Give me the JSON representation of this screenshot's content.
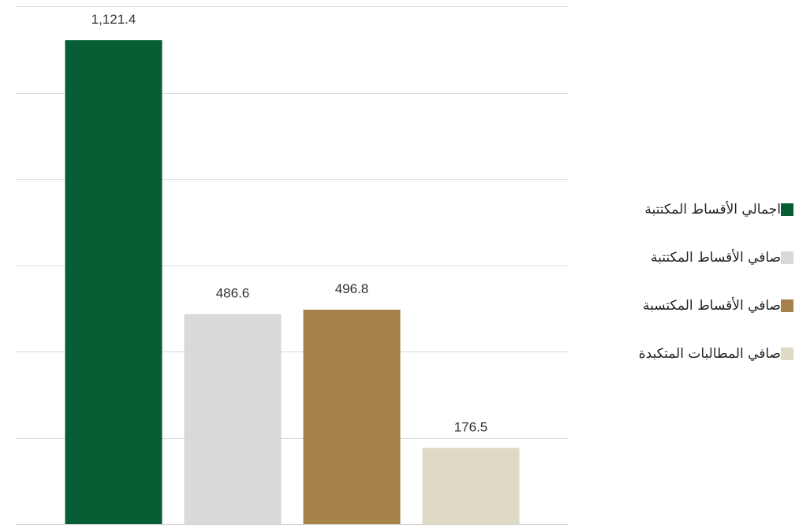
{
  "chart_data": {
    "type": "bar",
    "categories": [
      "اجمالي الأقساط المكتتبة",
      "صافي الأقساط المكتتبة",
      "صافي الأقساط المكتسبة",
      "صافي المطالبات المتكبدة"
    ],
    "values": [
      1121.4,
      486.6,
      496.8,
      176.5
    ],
    "value_labels": [
      "1,121.4",
      "486.6",
      "496.8",
      "176.5"
    ],
    "colors": [
      "#075e34",
      "#d9d9d9",
      "#a6824a",
      "#dedac3"
    ],
    "ylim": [
      0,
      1200
    ],
    "grid": true,
    "legend_position": "right",
    "legend": [
      {
        "label": "اجمالي الأقساط المكتتبة",
        "color": "#075e34"
      },
      {
        "label": "صافي الأقساط المكتتبة",
        "color": "#d9d9d9"
      },
      {
        "label": "صافي الأقساط المكتسبة",
        "color": "#a6824a"
      },
      {
        "label": "صافي المطالبات المتكبدة",
        "color": "#dedac3"
      }
    ]
  }
}
